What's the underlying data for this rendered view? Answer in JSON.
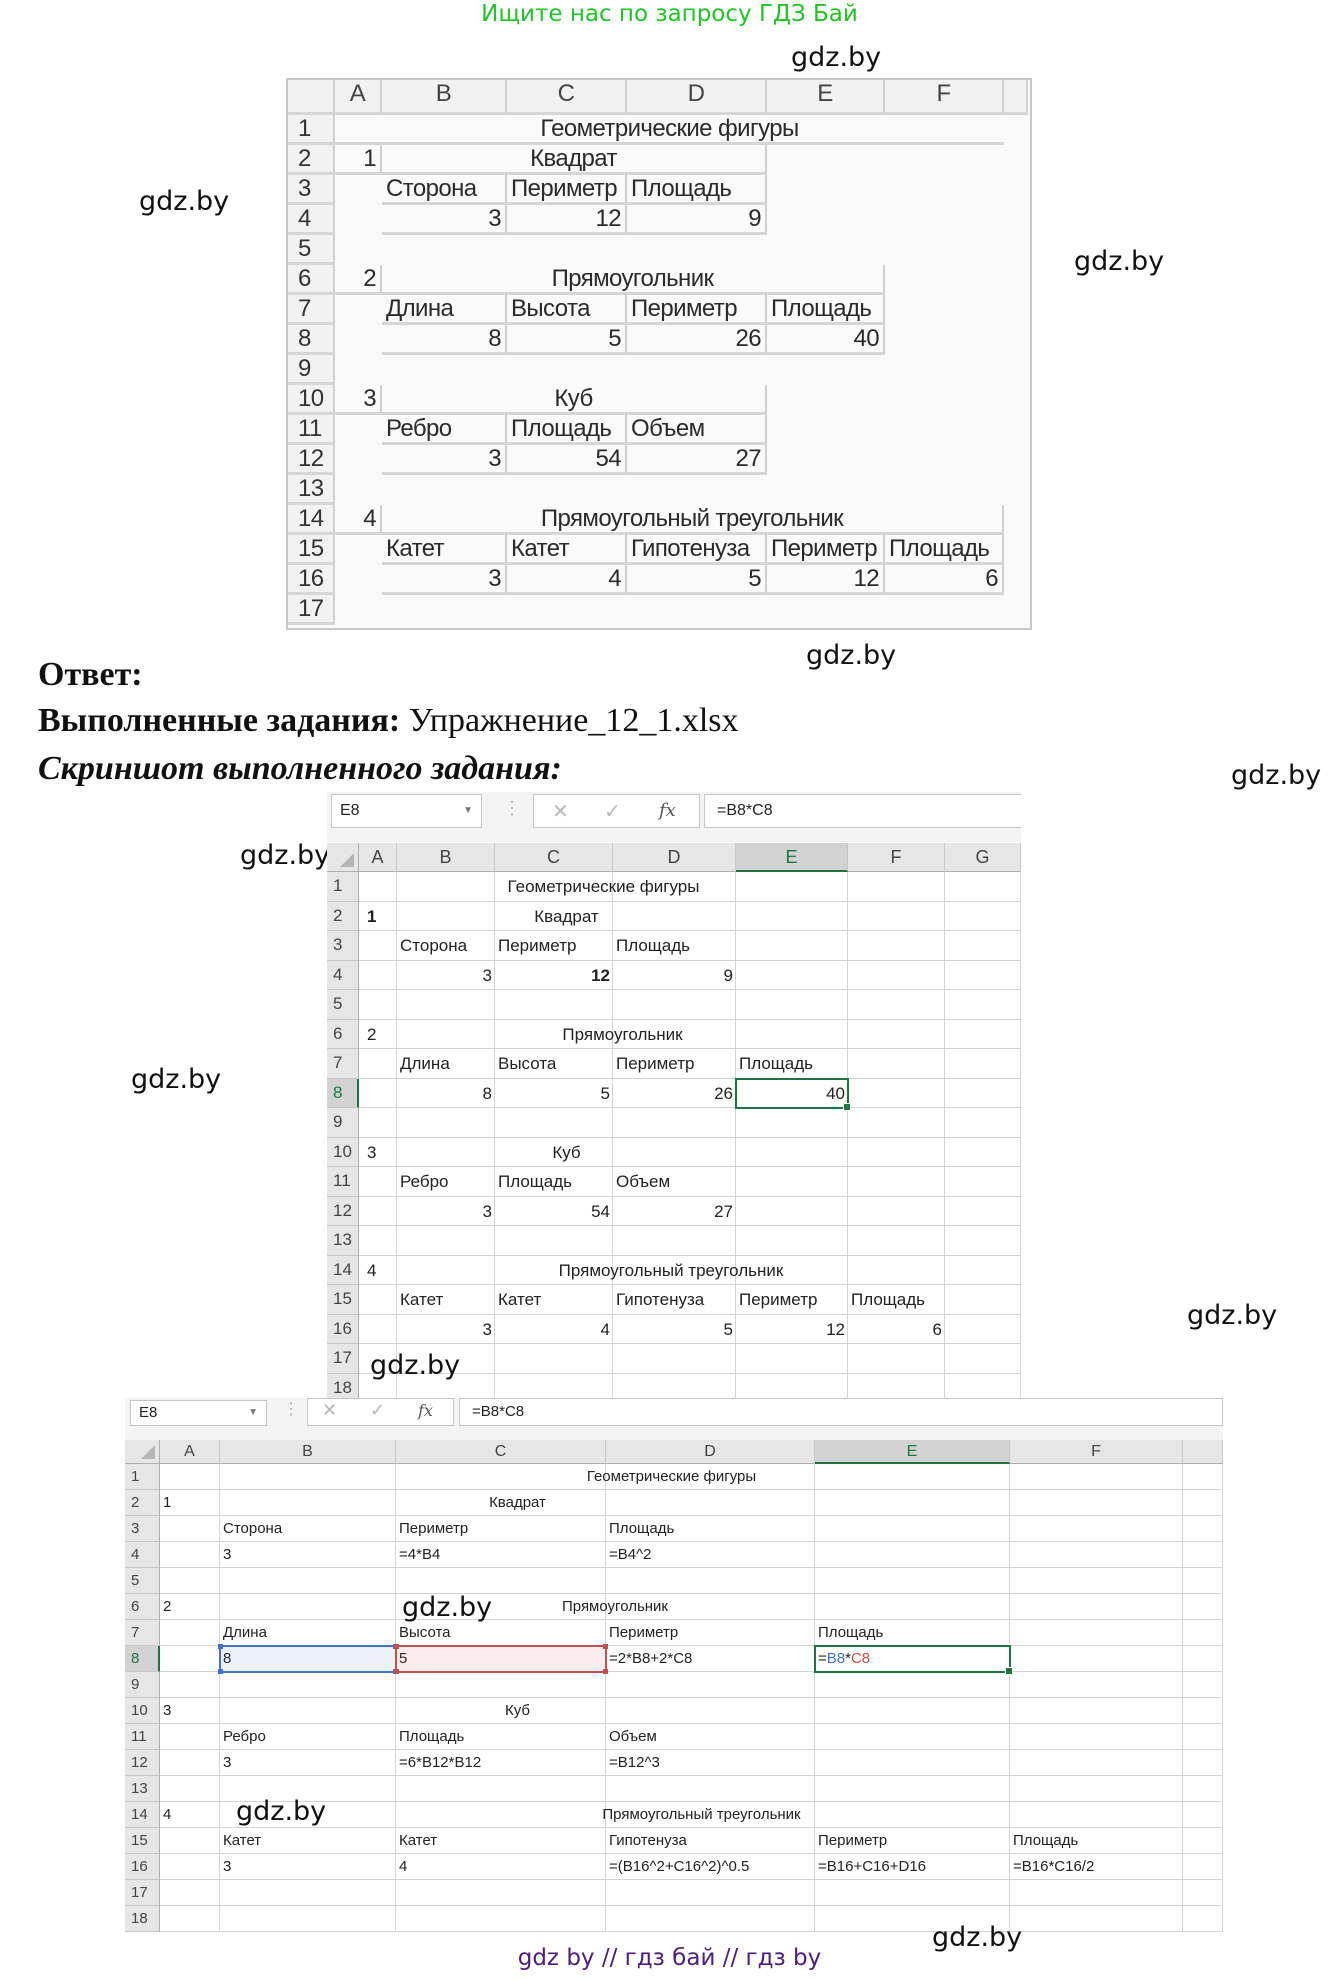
{
  "banner": "Ищите нас по запросу ГДЗ Бай",
  "watermark": "gdz.by",
  "footer": "gdz by  //  гдз бай  //  гдз by",
  "answer": {
    "heading": "Ответ:",
    "tasks_label": "Выполненные задания:",
    "tasks_value": " Упражнение_12_1.xlsx",
    "screenshot_label": "Скриншот выполненного задания:"
  },
  "colors": {
    "banner": "#22c22a",
    "footer": "#4a1f7a",
    "excel_green": "#217346",
    "ref_blue": "#4472c4",
    "ref_red": "#c0504d"
  },
  "sheet1": {
    "columns": [
      "A",
      "B",
      "C",
      "D",
      "E",
      "F"
    ],
    "rows": [
      "1",
      "2",
      "3",
      "4",
      "5",
      "6",
      "7",
      "8",
      "9",
      "10",
      "11",
      "12",
      "13",
      "14",
      "15",
      "16",
      "17"
    ],
    "cells": {
      "title": "Геометрические фигуры",
      "a2": "1",
      "square": "Квадрат",
      "b3": "Сторона",
      "c3": "Периметр",
      "d3": "Площадь",
      "b4": "3",
      "c4": "12",
      "d4": "9",
      "a6": "2",
      "rect": "Прямоугольник",
      "b7": "Длина",
      "c7": "Высота",
      "d7": "Периметр",
      "e7": "Площадь",
      "b8": "8",
      "c8": "5",
      "d8": "26",
      "e8": "40",
      "a10": "3",
      "cube": "Куб",
      "b11": "Ребро",
      "c11": "Площадь",
      "d11": "Объем",
      "b12": "3",
      "c12": "54",
      "d12": "27",
      "a14": "4",
      "tri": "Прямоугольный треугольник",
      "b15": "Катет",
      "c15": "Катет",
      "d15": "Гипотенуза",
      "e15": "Периметр",
      "f15": "Площадь",
      "b16": "3",
      "c16": "4",
      "d16": "5",
      "e16": "12",
      "f16": "6"
    }
  },
  "sheet2": {
    "name_box": "E8",
    "formula": "=B8*C8",
    "columns": [
      "A",
      "B",
      "C",
      "D",
      "E",
      "F",
      "G"
    ],
    "rows": [
      "1",
      "2",
      "3",
      "4",
      "5",
      "6",
      "7",
      "8",
      "9",
      "10",
      "11",
      "12",
      "13",
      "14",
      "15",
      "16",
      "17",
      "18"
    ],
    "cells": {
      "title": "Геометрические фигуры",
      "a2": "1",
      "square": "Квадрат",
      "b3": "Сторона",
      "c3": "Периметр",
      "d3": "Площадь",
      "b4": "3",
      "c4": "12",
      "d4": "9",
      "a6": "2",
      "rect": "Прямоугольник",
      "b7": "Длина",
      "c7": "Высота",
      "d7": "Периметр",
      "e7": "Площадь",
      "b8": "8",
      "c8": "5",
      "d8": "26",
      "e8": "40",
      "a10": "3",
      "cube": "Куб",
      "b11": "Ребро",
      "c11": "Площадь",
      "d11": "Объем",
      "b12": "3",
      "c12": "54",
      "d12": "27",
      "a14": "4",
      "tri": "Прямоугольный треугольник",
      "b15": "Катет",
      "c15": "Катет",
      "d15": "Гипотенуза",
      "e15": "Периметр",
      "f15": "Площадь",
      "b16": "3",
      "c16": "4",
      "d16": "5",
      "e16": "12",
      "f16": "6"
    }
  },
  "sheet3": {
    "name_box": "E8",
    "formula": "=B8*C8",
    "columns": [
      "A",
      "B",
      "C",
      "D",
      "E",
      "F"
    ],
    "rows": [
      "1",
      "2",
      "3",
      "4",
      "5",
      "6",
      "7",
      "8",
      "9",
      "10",
      "11",
      "12",
      "13",
      "14",
      "15",
      "16",
      "17",
      "18"
    ],
    "cells": {
      "title": "Геометрические фигуры",
      "a2": "1",
      "square": "Квадрат",
      "b3": "Сторона",
      "c3": "Периметр",
      "d3": "Площадь",
      "b4": "3",
      "c4": "=4*B4",
      "d4": "=B4^2",
      "a6": "2",
      "rect": "Прямоугольник",
      "b7": "Длина",
      "c7": "Высота",
      "d7": "Периметр",
      "e7": "Площадь",
      "b8": "8",
      "c8": "5",
      "d8": "=2*B8+2*C8",
      "e8_eq": "=",
      "e8_ref1": "B8",
      "e8_op": "*",
      "e8_ref2": "C8",
      "a10": "3",
      "cube": "Куб",
      "b11": "Ребро",
      "c11": "Площадь",
      "d11": "Объем",
      "b12": "3",
      "c12": "=6*B12*B12",
      "d12": "=B12^3",
      "a14": "4",
      "tri": "Прямоугольный треугольник",
      "b15": "Катет",
      "c15": "Катет",
      "d15": "Гипотенуза",
      "e15": "Периметр",
      "f15": "Площадь",
      "b16": "3",
      "c16": "4",
      "d16": "=(B16^2+C16^2)^0.5",
      "e16": "=B16+C16+D16",
      "f16": "=B16*C16/2"
    }
  }
}
